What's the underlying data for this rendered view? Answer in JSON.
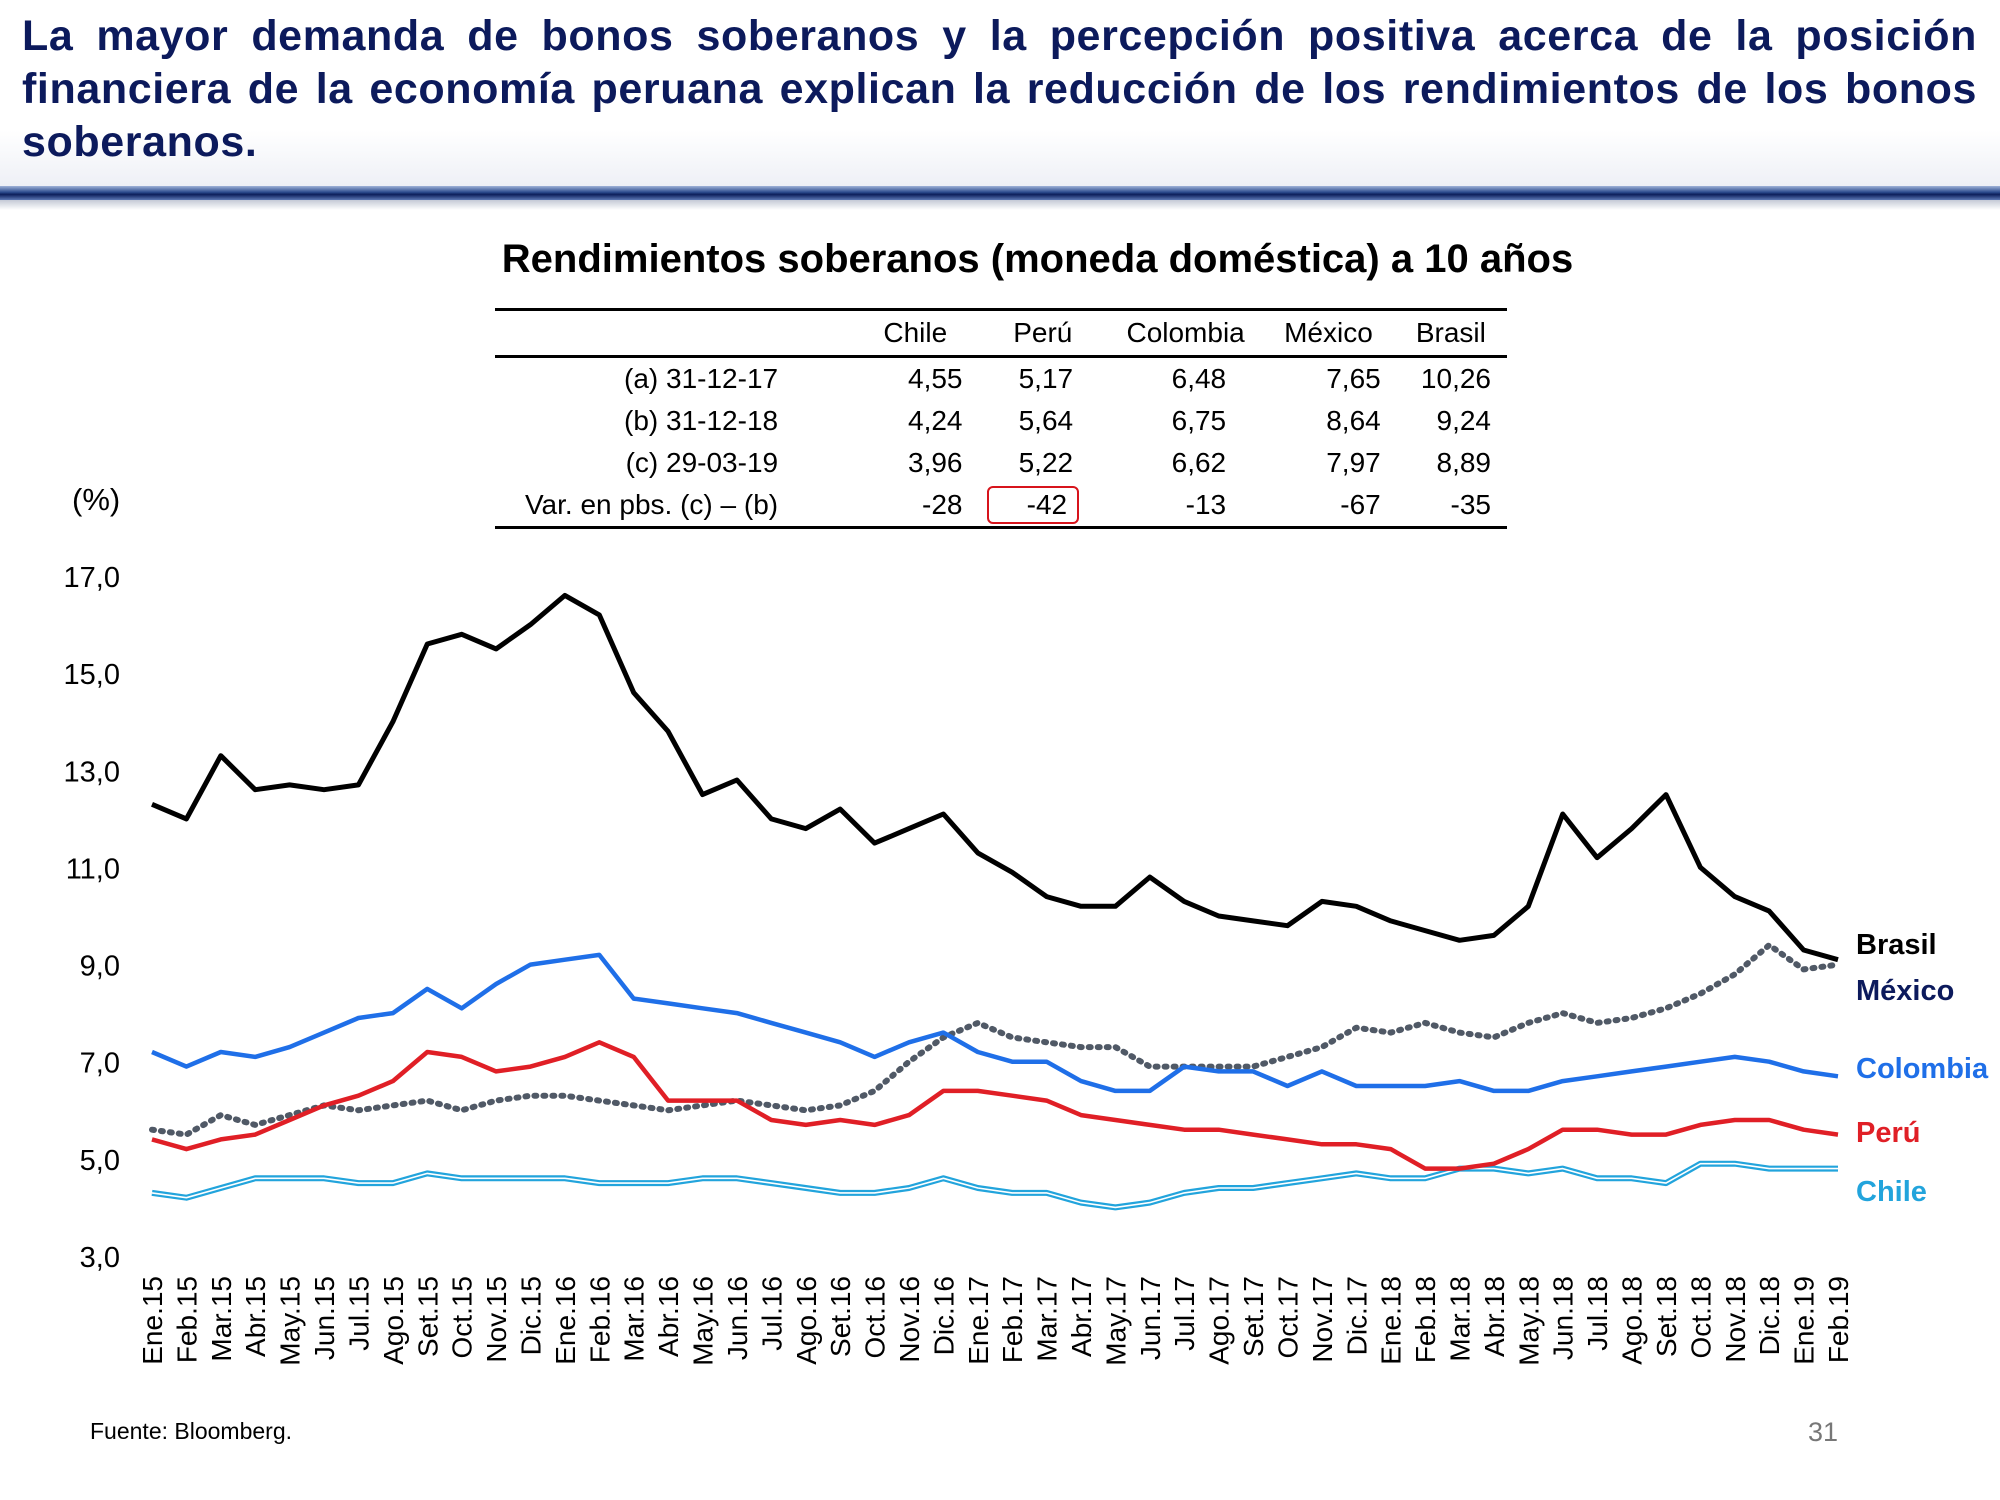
{
  "slide": {
    "headline": "La mayor demanda de bonos soberanos y la percepción positiva acerca de la posición financiera de la economía peruana explican la reducción de los rendimientos de los bonos soberanos.",
    "source": "Fuente: Bloomberg.",
    "page_number": "31"
  },
  "table": {
    "columns": [
      "Chile",
      "Perú",
      "Colombia",
      "México",
      "Brasil"
    ],
    "rows": [
      {
        "label": "(a) 31-12-17",
        "values": [
          "4,55",
          "5,17",
          "6,48",
          "7,65",
          "10,26"
        ]
      },
      {
        "label": "(b) 31-12-18",
        "values": [
          "4,24",
          "5,64",
          "6,75",
          "8,64",
          "9,24"
        ]
      },
      {
        "label": "(c) 29-03-19",
        "values": [
          "3,96",
          "5,22",
          "6,62",
          "7,97",
          "8,89"
        ]
      },
      {
        "label": "Var. en pbs. (c) – (b)",
        "values": [
          "-28",
          "-42",
          "-13",
          "-67",
          "-35"
        ]
      }
    ],
    "highlight": {
      "row": 3,
      "col": 1,
      "color": "#d7141c"
    }
  },
  "chart_data": {
    "type": "line",
    "title": "Rendimientos soberanos (moneda doméstica) a 10 años",
    "ylabel": "(%)",
    "ylim": [
      3,
      17
    ],
    "yticks": [
      "17,0",
      "15,0",
      "13,0",
      "11,0",
      "9,0",
      "7,0",
      "5,0",
      "3,0"
    ],
    "categories": [
      "Ene.15",
      "Feb.15",
      "Mar.15",
      "Abr.15",
      "May.15",
      "Jun.15",
      "Jul.15",
      "Ago.15",
      "Set.15",
      "Oct.15",
      "Nov.15",
      "Dic.15",
      "Ene.16",
      "Feb.16",
      "Mar.16",
      "Abr.16",
      "May.16",
      "Jun.16",
      "Jul.16",
      "Ago.16",
      "Set.16",
      "Oct.16",
      "Nov.16",
      "Dic.16",
      "Ene.17",
      "Feb.17",
      "Mar.17",
      "Abr.17",
      "May.17",
      "Jun.17",
      "Jul.17",
      "Ago.17",
      "Set.17",
      "Oct.17",
      "Nov.17",
      "Dic.17",
      "Ene.18",
      "Feb.18",
      "Mar.18",
      "Abr.18",
      "May.18",
      "Jun.18",
      "Jul.18",
      "Ago.18",
      "Set.18",
      "Oct.18",
      "Nov.18",
      "Dic.18",
      "Ene.19",
      "Feb.19"
    ],
    "grid": false,
    "legend": "line-end labels",
    "series": [
      {
        "name": "Brasil",
        "color": "#000000",
        "style": "solid",
        "values": [
          12.3,
          12.0,
          13.3,
          12.6,
          12.7,
          12.6,
          12.7,
          14.0,
          15.6,
          15.8,
          15.5,
          16.0,
          16.6,
          16.2,
          14.6,
          13.8,
          12.5,
          12.8,
          12.0,
          11.8,
          12.2,
          11.5,
          11.8,
          12.1,
          11.3,
          10.9,
          10.4,
          10.2,
          10.2,
          10.8,
          10.3,
          10.0,
          9.9,
          9.8,
          10.3,
          10.2,
          9.9,
          9.7,
          9.5,
          9.6,
          10.2,
          12.1,
          11.2,
          11.8,
          12.5,
          11.0,
          10.4,
          10.1,
          9.3,
          9.1
        ]
      },
      {
        "name": "México",
        "color": "#505966",
        "style": "dotted",
        "values": [
          5.6,
          5.5,
          5.9,
          5.7,
          5.9,
          6.1,
          6.0,
          6.1,
          6.2,
          6.0,
          6.2,
          6.3,
          6.3,
          6.2,
          6.1,
          6.0,
          6.1,
          6.2,
          6.1,
          6.0,
          6.1,
          6.4,
          7.0,
          7.5,
          7.8,
          7.5,
          7.4,
          7.3,
          7.3,
          6.9,
          6.9,
          6.9,
          6.9,
          7.1,
          7.3,
          7.7,
          7.6,
          7.8,
          7.6,
          7.5,
          7.8,
          8.0,
          7.8,
          7.9,
          8.1,
          8.4,
          8.8,
          9.4,
          8.9,
          9.0
        ]
      },
      {
        "name": "Colombia",
        "color": "#1f6fe8",
        "style": "solid",
        "values": [
          7.2,
          6.9,
          7.2,
          7.1,
          7.3,
          7.6,
          7.9,
          8.0,
          8.5,
          8.1,
          8.6,
          9.0,
          9.1,
          9.2,
          8.3,
          8.2,
          8.1,
          8.0,
          7.8,
          7.6,
          7.4,
          7.1,
          7.4,
          7.6,
          7.2,
          7.0,
          7.0,
          6.6,
          6.4,
          6.4,
          6.9,
          6.8,
          6.8,
          6.5,
          6.8,
          6.5,
          6.5,
          6.5,
          6.6,
          6.4,
          6.4,
          6.6,
          6.7,
          6.8,
          6.9,
          7.0,
          7.1,
          7.0,
          6.8,
          6.7
        ]
      },
      {
        "name": "Perú",
        "color": "#e01f26",
        "style": "solid",
        "values": [
          5.4,
          5.2,
          5.4,
          5.5,
          5.8,
          6.1,
          6.3,
          6.6,
          7.2,
          7.1,
          6.8,
          6.9,
          7.1,
          7.4,
          7.1,
          6.2,
          6.2,
          6.2,
          5.8,
          5.7,
          5.8,
          5.7,
          5.9,
          6.4,
          6.4,
          6.3,
          6.2,
          5.9,
          5.8,
          5.7,
          5.6,
          5.6,
          5.5,
          5.4,
          5.3,
          5.3,
          5.2,
          4.8,
          4.8,
          4.9,
          5.2,
          5.6,
          5.6,
          5.5,
          5.5,
          5.7,
          5.8,
          5.8,
          5.6,
          5.5
        ]
      },
      {
        "name": "Chile",
        "color": "#22a4dc",
        "style": "double",
        "values": [
          4.3,
          4.2,
          4.4,
          4.6,
          4.6,
          4.6,
          4.5,
          4.5,
          4.7,
          4.6,
          4.6,
          4.6,
          4.6,
          4.5,
          4.5,
          4.5,
          4.6,
          4.6,
          4.5,
          4.4,
          4.3,
          4.3,
          4.4,
          4.6,
          4.4,
          4.3,
          4.3,
          4.1,
          4.0,
          4.1,
          4.3,
          4.4,
          4.4,
          4.5,
          4.6,
          4.7,
          4.6,
          4.6,
          4.8,
          4.8,
          4.7,
          4.8,
          4.6,
          4.6,
          4.5,
          4.9,
          4.9,
          4.8,
          4.8,
          4.8
        ]
      }
    ]
  }
}
